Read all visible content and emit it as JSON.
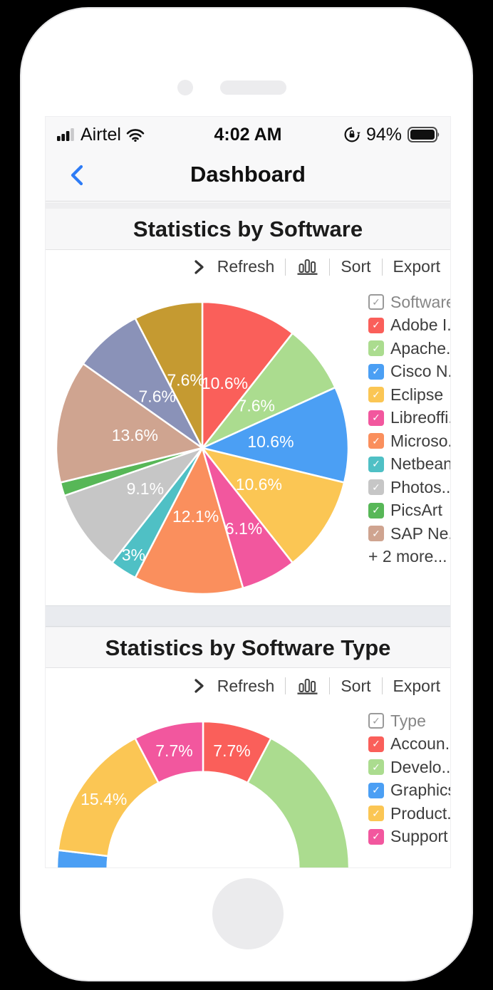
{
  "status_bar": {
    "carrier": "Airtel",
    "time": "4:02 AM",
    "battery_percent": "94%"
  },
  "nav_bar": {
    "title": "Dashboard",
    "back_icon": "chevron-left-icon"
  },
  "glyphs": {
    "check": "✓"
  },
  "sections": [
    {
      "title": "Statistics by Software",
      "toolbar": {
        "expand_icon": "chevron-right-icon",
        "refresh_label": "Refresh",
        "chart_type_icon": "bar-chart-icon",
        "sort_label": "Sort",
        "export_label": "Export"
      }
    },
    {
      "title": "Statistics by Software Type",
      "toolbar": {
        "expand_icon": "chevron-right-icon",
        "refresh_label": "Refresh",
        "chart_type_icon": "bar-chart-icon",
        "sort_label": "Sort",
        "export_label": "Export"
      }
    }
  ],
  "chart_data": [
    {
      "type": "pie",
      "title": "Statistics by Software",
      "legend_title": "Software",
      "legend_position": "right",
      "legend_more": "+ 2 more...",
      "labels_inside": true,
      "slices": [
        {
          "name": "Adobe I...",
          "value": 10.6,
          "label": "10.6%",
          "color": "#FA5F5A",
          "label_r": 0.47
        },
        {
          "name": "Apache...",
          "value": 7.6,
          "label": "7.6%",
          "color": "#ABDC8F",
          "label_r": 0.47
        },
        {
          "name": "Cisco N...",
          "value": 10.6,
          "label": "10.6%",
          "color": "#4B9FF4",
          "label_r": 0.47
        },
        {
          "name": "Eclipse",
          "value": 10.6,
          "label": "10.6%",
          "color": "#FBC654",
          "label_r": 0.46
        },
        {
          "name": "Libreoffi..",
          "value": 6.1,
          "label": "6.1%",
          "color": "#F2579E",
          "label_r": 0.62
        },
        {
          "name": "Microso...",
          "value": 12.1,
          "label": "12.1%",
          "color": "#FA8F5D",
          "label_r": 0.47
        },
        {
          "name": "Netbeans",
          "value": 3.0,
          "label": "3%",
          "color": "#4FC0C5",
          "label_r": 0.87
        },
        {
          "name": "Photos...",
          "value": 9.1,
          "label": "9.1%",
          "color": "#C6C6C6",
          "label_r": 0.48
        },
        {
          "name": "PicsArt",
          "value": 1.5,
          "label": "",
          "color": "#57B757",
          "label_r": 0.5
        },
        {
          "name": "SAP Ne...",
          "value": 13.6,
          "label": "13.6%",
          "color": "#CFA490",
          "label_r": 0.47
        },
        {
          "name": "",
          "value": 7.6,
          "label": "7.6%",
          "color": "#8A92B8",
          "label_r": 0.47,
          "in_legend": false
        },
        {
          "name": "",
          "value": 7.6,
          "label": "7.6%",
          "color": "#C59A31",
          "label_r": 0.48,
          "in_legend": false
        }
      ]
    },
    {
      "type": "donut",
      "title": "Statistics by Software Type",
      "legend_title": "Type",
      "legend_position": "right",
      "inner_radius_ratio": 0.655,
      "clipped_bottom": true,
      "labels_inside": true,
      "slices": [
        {
          "name": "Accoun...",
          "value": 7.7,
          "label": "7.7%",
          "color": "#FA5F5A",
          "label_r": 0.825
        },
        {
          "name": "Develo...",
          "value": 61.5,
          "label": "",
          "color": "#ABDC8F",
          "label_r": 0.825
        },
        {
          "name": "Graphics",
          "value": 7.7,
          "label": "",
          "color": "#4B9FF4",
          "label_r": 0.825
        },
        {
          "name": "Product...",
          "value": 15.4,
          "label": "15.4%",
          "color": "#FBC654",
          "label_r": 0.825
        },
        {
          "name": "Support",
          "value": 7.7,
          "label": "7.7%",
          "color": "#F2579E",
          "label_r": 0.825
        }
      ]
    }
  ]
}
